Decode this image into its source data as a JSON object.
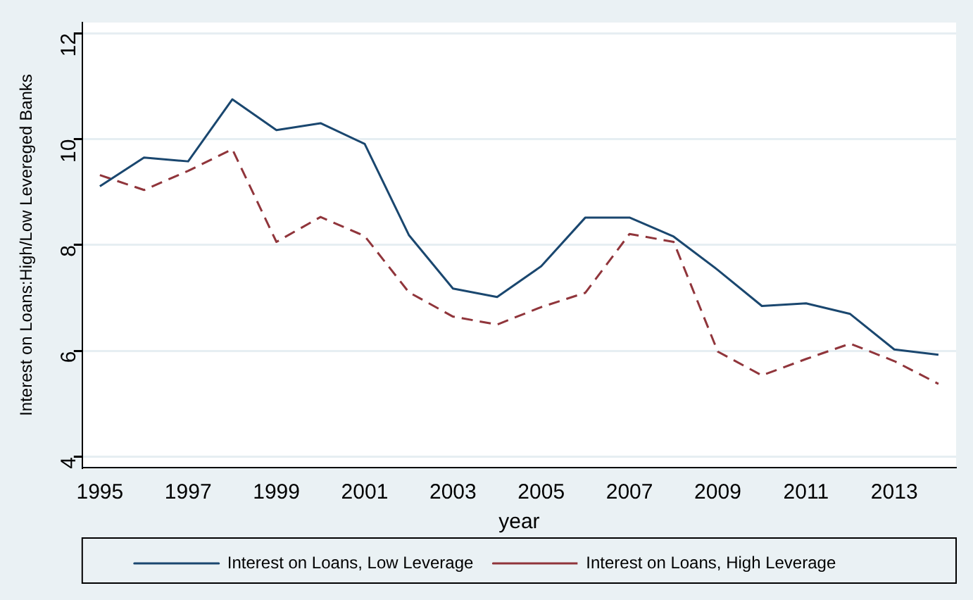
{
  "chart_data": {
    "type": "line",
    "xlabel": "year",
    "ylabel": "Interest on Loans:High/Low Levereged Banks",
    "x": [
      1995,
      1996,
      1997,
      1998,
      1999,
      2000,
      2001,
      2002,
      2003,
      2004,
      2005,
      2006,
      2007,
      2008,
      2009,
      2010,
      2011,
      2012,
      2013,
      2014
    ],
    "series": [
      {
        "name": "Interest on Loans, Low Leverage",
        "color": "#1a476f",
        "line_style": "solid",
        "values": [
          9.11,
          9.65,
          9.58,
          10.75,
          10.17,
          10.3,
          9.91,
          8.19,
          7.18,
          7.02,
          7.6,
          8.52,
          8.52,
          8.16,
          7.53,
          6.85,
          6.9,
          6.7,
          6.03,
          5.93
        ]
      },
      {
        "name": "Interest on Loans, High Leverage",
        "color": "#90353b",
        "line_style": "dashed",
        "values": [
          9.32,
          9.04,
          9.4,
          9.81,
          8.06,
          8.53,
          8.17,
          7.11,
          6.65,
          6.5,
          6.83,
          7.1,
          8.21,
          8.06,
          5.99,
          5.54,
          5.85,
          6.14,
          5.81,
          5.38
        ]
      }
    ],
    "xlim": [
      1994.6,
      2014.4
    ],
    "xticks": [
      1995,
      1997,
      1999,
      2001,
      2003,
      2005,
      2007,
      2009,
      2011,
      2013
    ],
    "ylim": [
      3.8,
      12.2
    ],
    "yticks": [
      4,
      6,
      8,
      10,
      12
    ],
    "grid": "y",
    "legend": "bottom"
  }
}
